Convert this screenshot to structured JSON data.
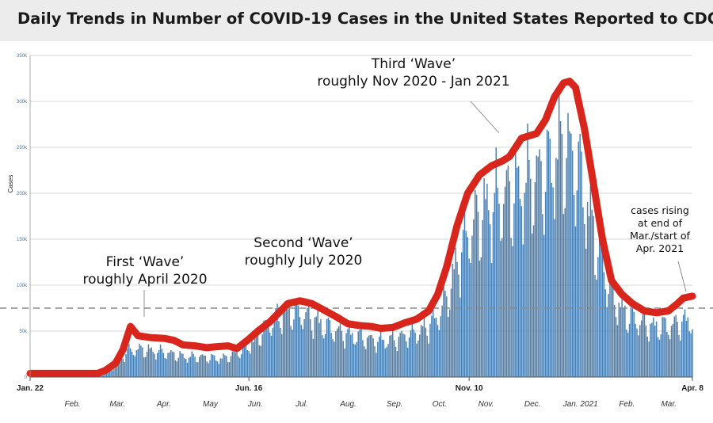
{
  "header": {
    "title": "Daily Trends in Number of COVID-19 Cases in the United States Reported to CDC"
  },
  "chart_data": {
    "type": "bar",
    "title": "Daily Trends in Number of COVID-19 Cases in the United States Reported to CDC",
    "ylabel": "Cases",
    "xlabel": "",
    "ylim": [
      0,
      350000
    ],
    "x_range_days": [
      0,
      442
    ],
    "y_ticks": [
      {
        "value": 0,
        "label": "0"
      },
      {
        "value": 50000,
        "label": "50k"
      },
      {
        "value": 100000,
        "label": "100k"
      },
      {
        "value": 150000,
        "label": "150k"
      },
      {
        "value": 200000,
        "label": "200k"
      },
      {
        "value": 250000,
        "label": "250k"
      },
      {
        "value": 300000,
        "label": "300k"
      },
      {
        "value": 350000,
        "label": "350k"
      }
    ],
    "x_ticks": [
      {
        "day": 0,
        "label": "Jan. 22"
      },
      {
        "day": 146,
        "label": "Jun. 16"
      },
      {
        "day": 293,
        "label": "Nov. 10"
      },
      {
        "day": 442,
        "label": "Apr. 8"
      }
    ],
    "months": [
      {
        "day": 23,
        "label": "Feb."
      },
      {
        "day": 53,
        "label": "Mar."
      },
      {
        "day": 84,
        "label": "Apr."
      },
      {
        "day": 115,
        "label": "May"
      },
      {
        "day": 145,
        "label": "Jun."
      },
      {
        "day": 176,
        "label": "Jul."
      },
      {
        "day": 207,
        "label": "Aug."
      },
      {
        "day": 238,
        "label": "Sep."
      },
      {
        "day": 268,
        "label": "Oct."
      },
      {
        "day": 299,
        "label": "Nov."
      },
      {
        "day": 330,
        "label": "Dec."
      },
      {
        "day": 362,
        "label": "Jan. 2021"
      },
      {
        "day": 393,
        "label": "Feb."
      },
      {
        "day": 421,
        "label": "Mar."
      }
    ],
    "reference_line": 75000,
    "daily_cases_anchors": [
      [
        0,
        0
      ],
      [
        38,
        0
      ],
      [
        45,
        500
      ],
      [
        50,
        3000
      ],
      [
        55,
        10000
      ],
      [
        60,
        20000
      ],
      [
        65,
        28000
      ],
      [
        70,
        30000
      ],
      [
        75,
        30000
      ],
      [
        80,
        29000
      ],
      [
        85,
        28000
      ],
      [
        90,
        27000
      ],
      [
        95,
        25000
      ],
      [
        100,
        23000
      ],
      [
        105,
        22000
      ],
      [
        110,
        22000
      ],
      [
        115,
        22000
      ],
      [
        120,
        21000
      ],
      [
        125,
        20000
      ],
      [
        130,
        21000
      ],
      [
        135,
        24000
      ],
      [
        140,
        28000
      ],
      [
        145,
        33000
      ],
      [
        150,
        40000
      ],
      [
        155,
        50000
      ],
      [
        160,
        58000
      ],
      [
        165,
        65000
      ],
      [
        170,
        70000
      ],
      [
        175,
        72000
      ],
      [
        180,
        70000
      ],
      [
        185,
        66000
      ],
      [
        190,
        62000
      ],
      [
        195,
        57000
      ],
      [
        200,
        53000
      ],
      [
        205,
        50000
      ],
      [
        210,
        48000
      ],
      [
        215,
        46000
      ],
      [
        220,
        44000
      ],
      [
        225,
        42000
      ],
      [
        230,
        40000
      ],
      [
        235,
        40000
      ],
      [
        240,
        41000
      ],
      [
        245,
        42000
      ],
      [
        250,
        45000
      ],
      [
        255,
        48000
      ],
      [
        260,
        50000
      ],
      [
        265,
        55000
      ],
      [
        270,
        62000
      ],
      [
        275,
        75000
      ],
      [
        280,
        95000
      ],
      [
        285,
        125000
      ],
      [
        290,
        150000
      ],
      [
        295,
        165000
      ],
      [
        300,
        175000
      ],
      [
        305,
        185000
      ],
      [
        310,
        190000
      ],
      [
        315,
        195000
      ],
      [
        320,
        200000
      ],
      [
        325,
        205000
      ],
      [
        330,
        210000
      ],
      [
        335,
        215000
      ],
      [
        340,
        220000
      ],
      [
        345,
        225000
      ],
      [
        350,
        240000
      ],
      [
        355,
        250000
      ],
      [
        360,
        245000
      ],
      [
        365,
        230000
      ],
      [
        370,
        200000
      ],
      [
        375,
        165000
      ],
      [
        380,
        135000
      ],
      [
        385,
        105000
      ],
      [
        390,
        85000
      ],
      [
        395,
        72000
      ],
      [
        400,
        66000
      ],
      [
        405,
        62000
      ],
      [
        410,
        58000
      ],
      [
        415,
        55000
      ],
      [
        420,
        55000
      ],
      [
        425,
        55000
      ],
      [
        430,
        57000
      ],
      [
        435,
        60000
      ],
      [
        440,
        62000
      ],
      [
        442,
        62000
      ]
    ],
    "trend_line_anchors": [
      [
        0,
        4000
      ],
      [
        20,
        4000
      ],
      [
        45,
        4000
      ],
      [
        50,
        7000
      ],
      [
        57,
        15000
      ],
      [
        62,
        30000
      ],
      [
        67,
        55000
      ],
      [
        72,
        45000
      ],
      [
        80,
        43000
      ],
      [
        90,
        42000
      ],
      [
        96,
        40000
      ],
      [
        102,
        35000
      ],
      [
        110,
        34000
      ],
      [
        118,
        32000
      ],
      [
        124,
        33000
      ],
      [
        132,
        34000
      ],
      [
        138,
        31000
      ],
      [
        145,
        40000
      ],
      [
        152,
        50000
      ],
      [
        160,
        60000
      ],
      [
        166,
        70000
      ],
      [
        172,
        80000
      ],
      [
        180,
        83000
      ],
      [
        188,
        80000
      ],
      [
        196,
        73000
      ],
      [
        205,
        65000
      ],
      [
        212,
        58000
      ],
      [
        220,
        56000
      ],
      [
        228,
        55000
      ],
      [
        234,
        53000
      ],
      [
        242,
        54000
      ],
      [
        250,
        59000
      ],
      [
        258,
        63000
      ],
      [
        266,
        72000
      ],
      [
        272,
        90000
      ],
      [
        278,
        120000
      ],
      [
        285,
        165000
      ],
      [
        292,
        200000
      ],
      [
        300,
        220000
      ],
      [
        308,
        230000
      ],
      [
        315,
        235000
      ],
      [
        320,
        240000
      ],
      [
        328,
        260000
      ],
      [
        338,
        265000
      ],
      [
        344,
        280000
      ],
      [
        350,
        305000
      ],
      [
        356,
        320000
      ],
      [
        360,
        322000
      ],
      [
        364,
        315000
      ],
      [
        370,
        270000
      ],
      [
        376,
        210000
      ],
      [
        382,
        150000
      ],
      [
        388,
        105000
      ],
      [
        395,
        90000
      ],
      [
        402,
        80000
      ],
      [
        410,
        72000
      ],
      [
        418,
        70000
      ],
      [
        426,
        72000
      ],
      [
        432,
        80000
      ],
      [
        436,
        86000
      ],
      [
        442,
        88000
      ]
    ]
  },
  "annotations": {
    "first_wave": {
      "line1": "First ‘Wave’",
      "line2": "roughly April 2020"
    },
    "second_wave": {
      "line1": "Second ‘Wave’",
      "line2": "roughly July 2020"
    },
    "third_wave": {
      "line1": "Third ‘Wave’",
      "line2": "roughly Nov 2020 - Jan 2021"
    },
    "rising": {
      "line1": "cases rising",
      "line2": "at end of",
      "line3": "Mar./start of",
      "line4": "Apr. 2021"
    }
  },
  "colors": {
    "bar": "#4a7fb1",
    "trend": "#d8261c",
    "grid": "#c8c8c8",
    "reference": "#8a8a8a"
  }
}
